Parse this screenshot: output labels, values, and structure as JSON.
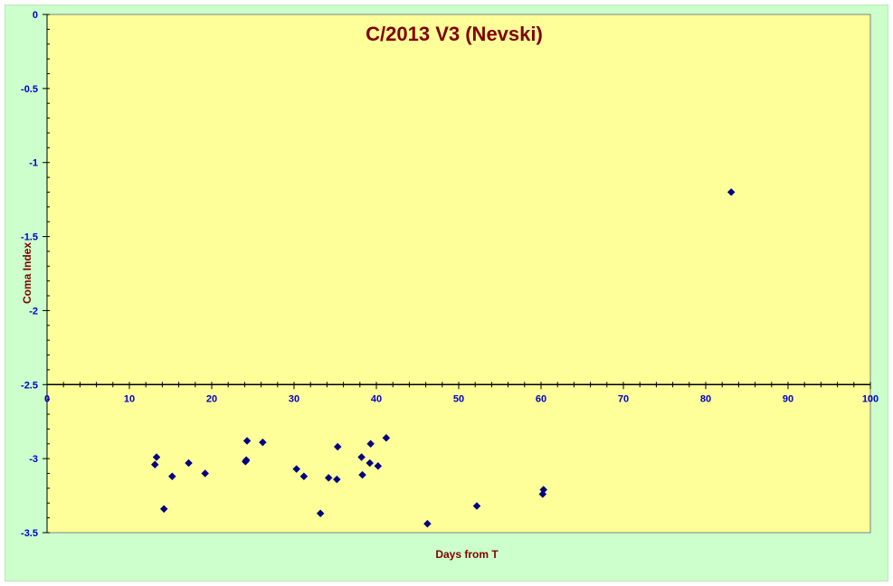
{
  "chart_data": {
    "type": "scatter",
    "title": "C/2013 V3 (Nevski)",
    "xlabel": "Days from T",
    "ylabel": "Coma Index",
    "xlim": [
      0,
      100
    ],
    "ylim": [
      -3.5,
      0
    ],
    "x_axis_crosses_y": -2.5,
    "x_ticks": [
      0,
      10,
      20,
      30,
      40,
      50,
      60,
      70,
      80,
      90,
      100
    ],
    "y_ticks": [
      0,
      -0.5,
      -1,
      -1.5,
      -2,
      -2.5,
      -3,
      -3.5
    ],
    "x_tick_labels": [
      "0",
      "10",
      "20",
      "30",
      "40",
      "50",
      "60",
      "70",
      "80",
      "90",
      "100"
    ],
    "y_tick_labels": [
      "0",
      "-0.5",
      "-1",
      "-1.5",
      "-2",
      "-2.5",
      "-3",
      "-3.5"
    ],
    "grid": false,
    "legend": "none",
    "colors": {
      "outer_background": "#ccffcc",
      "plot_background": "#ffff99",
      "marker": "#000080",
      "tick_text": "#0000cc",
      "title_text": "#800000"
    },
    "marker_shape": "diamond",
    "points": [
      {
        "x": 13.1,
        "y": -3.04
      },
      {
        "x": 13.3,
        "y": -2.99
      },
      {
        "x": 14.2,
        "y": -3.34
      },
      {
        "x": 15.2,
        "y": -3.12
      },
      {
        "x": 17.2,
        "y": -3.03
      },
      {
        "x": 19.2,
        "y": -3.1
      },
      {
        "x": 24.1,
        "y": -3.02
      },
      {
        "x": 24.2,
        "y": -3.01
      },
      {
        "x": 24.3,
        "y": -2.88
      },
      {
        "x": 26.2,
        "y": -2.89
      },
      {
        "x": 30.3,
        "y": -3.07
      },
      {
        "x": 31.2,
        "y": -3.12
      },
      {
        "x": 33.2,
        "y": -3.37
      },
      {
        "x": 34.2,
        "y": -3.13
      },
      {
        "x": 35.2,
        "y": -3.14
      },
      {
        "x": 35.3,
        "y": -2.92
      },
      {
        "x": 38.2,
        "y": -2.99
      },
      {
        "x": 38.3,
        "y": -3.11
      },
      {
        "x": 39.2,
        "y": -3.03
      },
      {
        "x": 39.3,
        "y": -2.9
      },
      {
        "x": 40.2,
        "y": -3.05
      },
      {
        "x": 41.2,
        "y": -2.86
      },
      {
        "x": 46.2,
        "y": -3.44
      },
      {
        "x": 52.2,
        "y": -3.32
      },
      {
        "x": 60.2,
        "y": -3.24
      },
      {
        "x": 60.3,
        "y": -3.21
      },
      {
        "x": 83.1,
        "y": -1.2
      }
    ]
  }
}
